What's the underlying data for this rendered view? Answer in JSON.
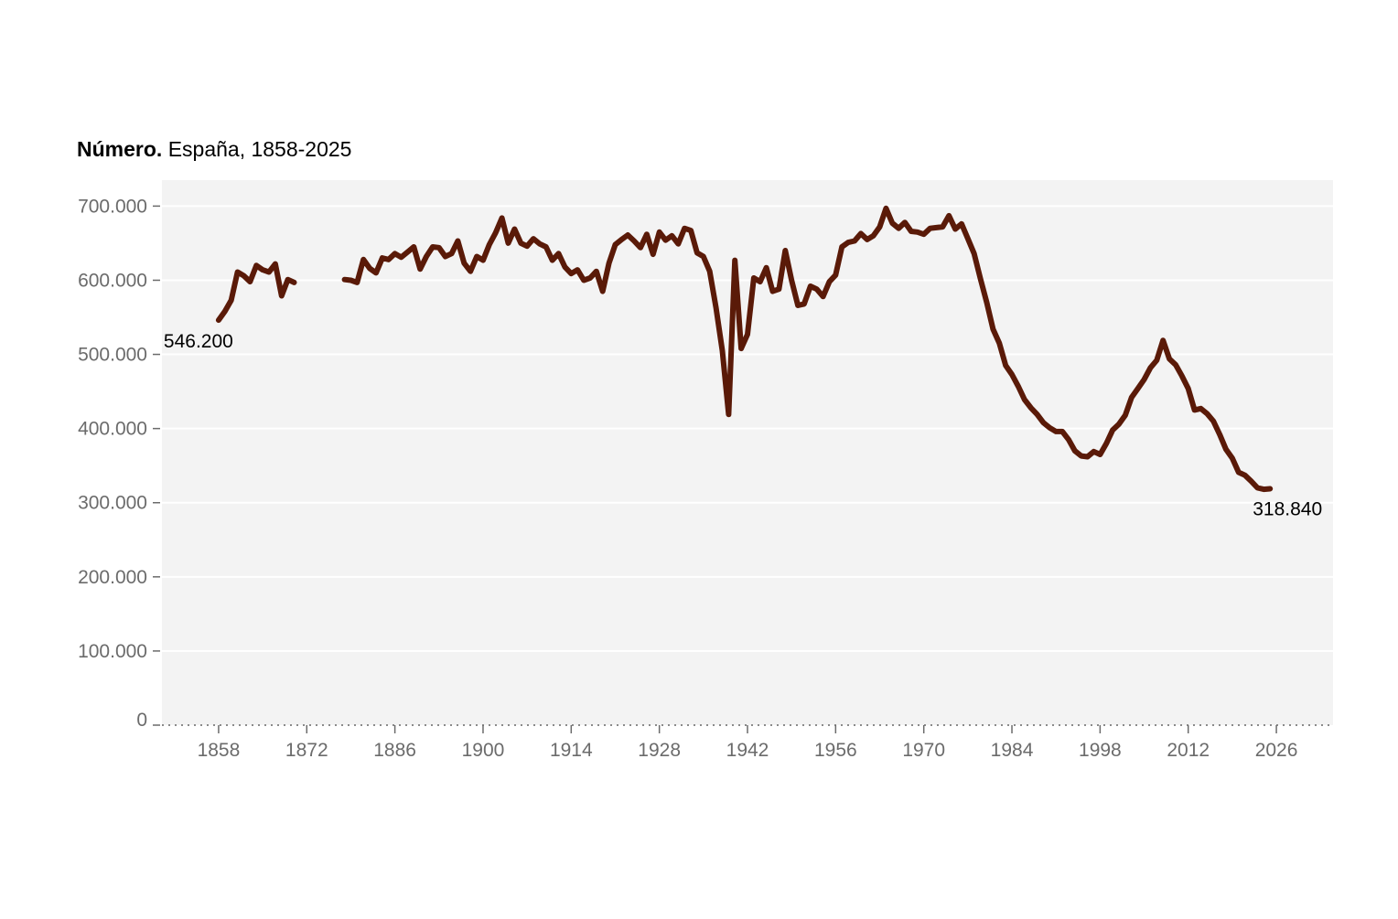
{
  "chart_data": {
    "type": "line",
    "title_bold": "Número.",
    "title_rest": "España, 1858-2025",
    "xlabel": "",
    "ylabel": "",
    "xlim": [
      1849,
      2035
    ],
    "ylim": [
      0,
      735000
    ],
    "x_ticks": [
      1858,
      1872,
      1886,
      1900,
      1914,
      1928,
      1942,
      1956,
      1970,
      1984,
      1998,
      2012,
      2026
    ],
    "y_ticks": [
      0,
      100000,
      200000,
      300000,
      400000,
      500000,
      600000,
      700000
    ],
    "y_tick_labels": [
      "0",
      "100.000",
      "200.000",
      "300.000",
      "400.000",
      "500.000",
      "600.000",
      "700.000"
    ],
    "line_color": "#5a1a08",
    "plot_background": "#f3f3f3",
    "grid": true,
    "start_label": "546.200",
    "end_label": "318.840",
    "series": [
      {
        "segments": [
          [
            [
              1858,
              546200
            ],
            [
              1859,
              558000
            ],
            [
              1860,
              573000
            ],
            [
              1861,
              611000
            ],
            [
              1862,
              606000
            ],
            [
              1863,
              598000
            ],
            [
              1864,
              620000
            ],
            [
              1865,
              614000
            ],
            [
              1866,
              611000
            ],
            [
              1867,
              622000
            ],
            [
              1868,
              579000
            ],
            [
              1869,
              601000
            ],
            [
              1870,
              597000
            ]
          ],
          [
            [
              1878,
              601000
            ],
            [
              1879,
              600000
            ],
            [
              1880,
              597000
            ],
            [
              1881,
              628000
            ],
            [
              1882,
              616000
            ],
            [
              1883,
              610000
            ],
            [
              1884,
              630000
            ],
            [
              1885,
              628000
            ],
            [
              1886,
              636000
            ],
            [
              1887,
              631000
            ],
            [
              1888,
              638000
            ],
            [
              1889,
              645000
            ],
            [
              1890,
              615000
            ],
            [
              1891,
              632000
            ],
            [
              1892,
              645000
            ],
            [
              1893,
              644000
            ],
            [
              1894,
              632000
            ],
            [
              1895,
              636000
            ],
            [
              1896,
              653000
            ],
            [
              1897,
              623000
            ],
            [
              1898,
              612000
            ],
            [
              1899,
              632000
            ],
            [
              1900,
              627000
            ],
            [
              1901,
              648000
            ],
            [
              1902,
              664000
            ],
            [
              1903,
              684000
            ],
            [
              1904,
              650000
            ],
            [
              1905,
              669000
            ],
            [
              1906,
              650000
            ],
            [
              1907,
              646000
            ],
            [
              1908,
              656000
            ],
            [
              1909,
              649000
            ],
            [
              1910,
              645000
            ],
            [
              1911,
              627000
            ],
            [
              1912,
              636000
            ],
            [
              1913,
              618000
            ],
            [
              1914,
              609000
            ],
            [
              1915,
              614000
            ],
            [
              1916,
              600000
            ],
            [
              1917,
              603000
            ],
            [
              1918,
              612000
            ],
            [
              1919,
              585000
            ],
            [
              1920,
              623000
            ],
            [
              1921,
              648000
            ],
            [
              1922,
              655000
            ],
            [
              1923,
              661000
            ],
            [
              1924,
              653000
            ],
            [
              1925,
              644000
            ],
            [
              1926,
              662000
            ],
            [
              1927,
              635000
            ],
            [
              1928,
              665000
            ],
            [
              1929,
              654000
            ],
            [
              1930,
              660000
            ],
            [
              1931,
              649000
            ],
            [
              1932,
              670000
            ],
            [
              1933,
              667000
            ],
            [
              1934,
              637000
            ],
            [
              1935,
              632000
            ],
            [
              1936,
              612000
            ],
            [
              1937,
              563000
            ],
            [
              1938,
              505000
            ],
            [
              1939,
              419000
            ],
            [
              1940,
              627000
            ],
            [
              1941,
              508000
            ],
            [
              1942,
              527000
            ],
            [
              1943,
              603000
            ],
            [
              1944,
              598000
            ],
            [
              1945,
              617000
            ],
            [
              1946,
              585000
            ],
            [
              1947,
              588000
            ],
            [
              1948,
              640000
            ],
            [
              1949,
              600000
            ],
            [
              1950,
              566000
            ],
            [
              1951,
              568000
            ],
            [
              1952,
              592000
            ],
            [
              1953,
              588000
            ],
            [
              1954,
              578000
            ],
            [
              1955,
              598000
            ],
            [
              1956,
              607000
            ],
            [
              1957,
              645000
            ],
            [
              1958,
              651000
            ],
            [
              1959,
              653000
            ],
            [
              1960,
              663000
            ],
            [
              1961,
              655000
            ],
            [
              1962,
              660000
            ],
            [
              1963,
              672000
            ],
            [
              1964,
              697000
            ],
            [
              1965,
              677000
            ],
            [
              1966,
              670000
            ],
            [
              1967,
              678000
            ],
            [
              1968,
              666000
            ],
            [
              1969,
              665000
            ],
            [
              1970,
              662000
            ],
            [
              1971,
              670000
            ],
            [
              1972,
              671000
            ],
            [
              1973,
              672000
            ],
            [
              1974,
              687000
            ],
            [
              1975,
              669000
            ],
            [
              1976,
              676000
            ],
            [
              1977,
              656000
            ],
            [
              1978,
              636000
            ],
            [
              1979,
              602000
            ],
            [
              1980,
              570000
            ],
            [
              1981,
              534000
            ],
            [
              1982,
              515000
            ],
            [
              1983,
              485000
            ],
            [
              1984,
              473000
            ],
            [
              1985,
              457000
            ],
            [
              1986,
              439000
            ],
            [
              1987,
              428000
            ],
            [
              1988,
              419000
            ],
            [
              1989,
              408000
            ],
            [
              1990,
              401000
            ],
            [
              1991,
              396000
            ],
            [
              1992,
              396000
            ],
            [
              1993,
              385000
            ],
            [
              1994,
              370000
            ],
            [
              1995,
              363000
            ],
            [
              1996,
              362000
            ],
            [
              1997,
              369000
            ],
            [
              1998,
              365000
            ],
            [
              1999,
              380000
            ],
            [
              2000,
              398000
            ],
            [
              2001,
              406000
            ],
            [
              2002,
              418000
            ],
            [
              2003,
              442000
            ],
            [
              2004,
              454000
            ],
            [
              2005,
              466000
            ],
            [
              2006,
              482000
            ],
            [
              2007,
              492000
            ],
            [
              2008,
              519000
            ],
            [
              2009,
              494000
            ],
            [
              2010,
              486000
            ],
            [
              2011,
              471000
            ],
            [
              2012,
              454000
            ],
            [
              2013,
              425000
            ],
            [
              2014,
              427000
            ],
            [
              2015,
              420000
            ],
            [
              2016,
              410000
            ],
            [
              2017,
              392000
            ],
            [
              2018,
              372000
            ],
            [
              2019,
              360000
            ],
            [
              2020,
              341000
            ],
            [
              2021,
              337000
            ],
            [
              2022,
              329000
            ],
            [
              2023,
              320000
            ],
            [
              2024,
              318000
            ],
            [
              2025,
              318840
            ]
          ]
        ]
      }
    ]
  }
}
